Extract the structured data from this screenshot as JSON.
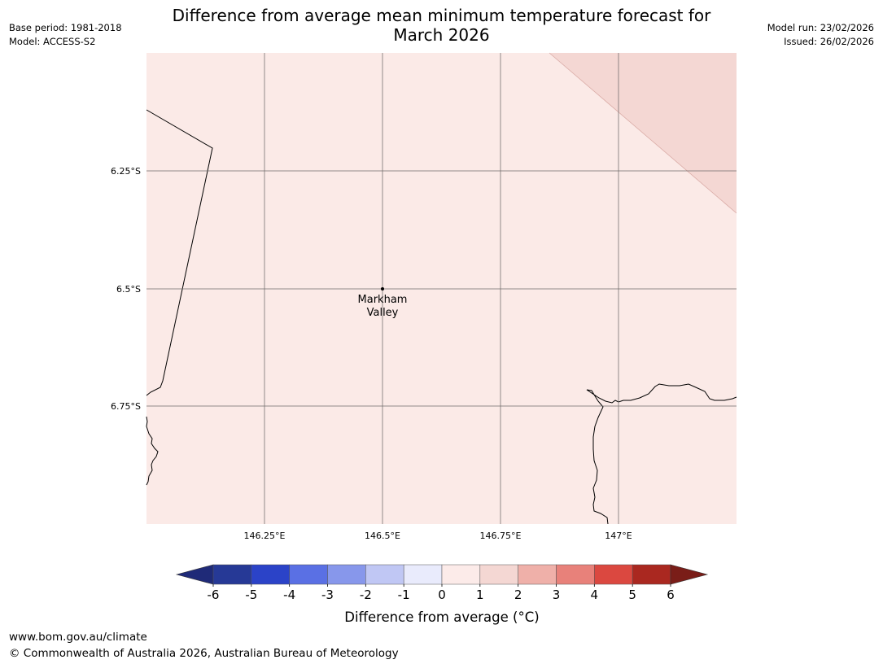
{
  "header": {
    "title_line1": "Difference from average mean minimum temperature forecast for",
    "title_line2": "March 2026",
    "base_period": "Base period: 1981-2018",
    "model": "Model: ACCESS-S2",
    "model_run": "Model run: 23/02/2026",
    "issued": "Issued: 26/02/2026"
  },
  "map": {
    "background_color": "#fbeae7",
    "warm_region_color": "#f4d7d3",
    "lat_labels": [
      "6.25°S",
      "6.5°S",
      "6.75°S"
    ],
    "lon_labels": [
      "146.25°E",
      "146.5°E",
      "146.75°E",
      "147°E"
    ],
    "place": {
      "name_line1": "Markham",
      "name_line2": "Valley"
    }
  },
  "colorbar": {
    "label": "Difference from average (°C)",
    "ticks": [
      "-6",
      "-5",
      "-4",
      "-3",
      "-2",
      "-1",
      "0",
      "1",
      "2",
      "3",
      "4",
      "5",
      "6"
    ],
    "colors": [
      "#263996",
      "#2b43c8",
      "#5a70e4",
      "#8797eb",
      "#c0c7f4",
      "#e9ebfc",
      "#fcebe9",
      "#f4d7d3",
      "#efb0a9",
      "#e8817a",
      "#db4840",
      "#aa2820"
    ],
    "extend_low_color": "#1f2a78",
    "extend_high_color": "#7a1d18"
  },
  "footer": {
    "url": "www.bom.gov.au/climate",
    "copyright": "© Commonwealth of Australia 2026, Australian Bureau of Meteorology"
  }
}
